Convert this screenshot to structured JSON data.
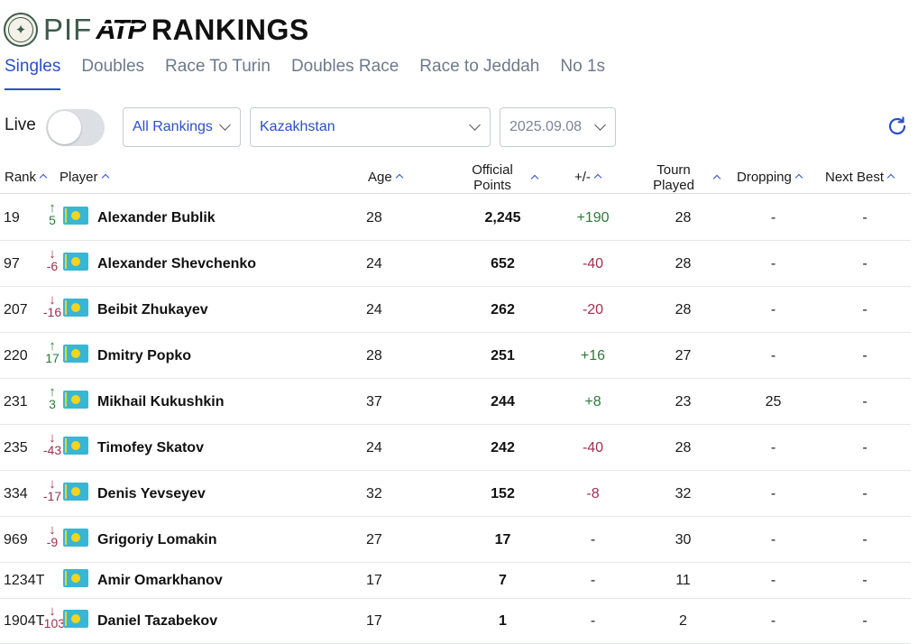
{
  "header": {
    "brand_pif": "PIF",
    "brand_atp": "ATP",
    "brand_rankings": "RANKINGS"
  },
  "tabs": [
    {
      "label": "Singles",
      "active": true
    },
    {
      "label": "Doubles",
      "active": false
    },
    {
      "label": "Race To Turin",
      "active": false
    },
    {
      "label": "Doubles Race",
      "active": false
    },
    {
      "label": "Race to Jeddah",
      "active": false
    },
    {
      "label": "No 1s",
      "active": false
    }
  ],
  "filters": {
    "live_label": "Live",
    "live_on": false,
    "rankings_select": "All Rankings",
    "country_select": "Kazakhstan",
    "date_select": "2025.09.08"
  },
  "columns": {
    "rank": "Rank",
    "player": "Player",
    "age": "Age",
    "points_line1": "Official",
    "points_line2": "Points",
    "delta": "+/-",
    "played_line1": "Tourn",
    "played_line2": "Played",
    "dropping": "Dropping",
    "next_best": "Next Best"
  },
  "colors": {
    "accent": "#2b4fc7",
    "up": "#2c7a3a",
    "down": "#a0304f",
    "flag_blue": "#38b6d4",
    "flag_gold": "#f5d41b"
  },
  "rows": [
    {
      "rank": "19",
      "move": "5",
      "dir": "up",
      "name": "Alexander Bublik",
      "age": "28",
      "points": "2,245",
      "delta": "+190",
      "delta_type": "pos",
      "played": "28",
      "dropping": "-",
      "next": "-"
    },
    {
      "rank": "97",
      "move": "-6",
      "dir": "down",
      "name": "Alexander Shevchenko",
      "age": "24",
      "points": "652",
      "delta": "-40",
      "delta_type": "neg",
      "played": "28",
      "dropping": "-",
      "next": "-"
    },
    {
      "rank": "207",
      "move": "-16",
      "dir": "down",
      "name": "Beibit Zhukayev",
      "age": "24",
      "points": "262",
      "delta": "-20",
      "delta_type": "neg",
      "played": "28",
      "dropping": "-",
      "next": "-"
    },
    {
      "rank": "220",
      "move": "17",
      "dir": "up",
      "name": "Dmitry Popko",
      "age": "28",
      "points": "251",
      "delta": "+16",
      "delta_type": "pos",
      "played": "27",
      "dropping": "-",
      "next": "-"
    },
    {
      "rank": "231",
      "move": "3",
      "dir": "up",
      "name": "Mikhail Kukushkin",
      "age": "37",
      "points": "244",
      "delta": "+8",
      "delta_type": "pos",
      "played": "23",
      "dropping": "25",
      "next": "-"
    },
    {
      "rank": "235",
      "move": "-43",
      "dir": "down",
      "name": "Timofey Skatov",
      "age": "24",
      "points": "242",
      "delta": "-40",
      "delta_type": "neg",
      "played": "28",
      "dropping": "-",
      "next": "-"
    },
    {
      "rank": "334",
      "move": "-17",
      "dir": "down",
      "name": "Denis Yevseyev",
      "age": "32",
      "points": "152",
      "delta": "-8",
      "delta_type": "neg",
      "played": "32",
      "dropping": "-",
      "next": "-"
    },
    {
      "rank": "969",
      "move": "-9",
      "dir": "down",
      "name": "Grigoriy Lomakin",
      "age": "27",
      "points": "17",
      "delta": "-",
      "delta_type": "none",
      "played": "30",
      "dropping": "-",
      "next": "-"
    },
    {
      "rank": "1234T",
      "move": "",
      "dir": "none",
      "name": "Amir Omarkhanov",
      "age": "17",
      "points": "7",
      "delta": "-",
      "delta_type": "none",
      "played": "11",
      "dropping": "-",
      "next": "-"
    },
    {
      "rank": "1904T",
      "move": "-103",
      "dir": "down",
      "name": "Daniel Tazabekov",
      "age": "17",
      "points": "1",
      "delta": "-",
      "delta_type": "none",
      "played": "2",
      "dropping": "-",
      "next": "-"
    }
  ]
}
